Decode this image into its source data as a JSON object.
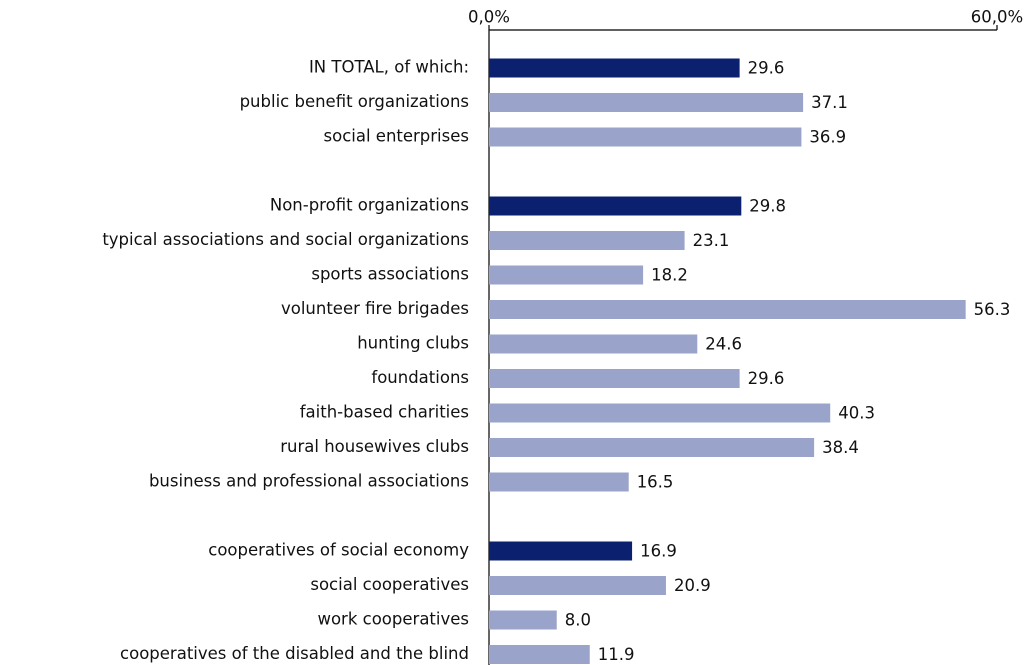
{
  "chart_data": {
    "type": "hbar",
    "categories": [
      "IN TOTAL, of which:",
      "public benefit organizations",
      "social enterprises",
      null,
      "Non-profit organizations",
      "typical associations and social organizations",
      "sports associations",
      "volunteer fire brigades",
      "hunting clubs",
      "foundations",
      "faith-based charities",
      "rural housewives clubs",
      "business and professional associations",
      null,
      "cooperatives of social economy",
      "social cooperatives",
      "work cooperatives",
      "cooperatives of the disabled and the blind"
    ],
    "values": [
      29.6,
      37.1,
      36.9,
      null,
      29.8,
      23.1,
      18.2,
      56.3,
      24.6,
      29.6,
      40.3,
      38.4,
      16.5,
      null,
      16.9,
      20.9,
      8.0,
      11.9
    ],
    "value_labels": [
      "29.6",
      "37.1",
      "36.9",
      null,
      "29.8",
      "23.1",
      "18.2",
      "56.3",
      "24.6",
      "29.6",
      "40.3",
      "38.4",
      "16.5",
      null,
      "16.9",
      "20.9",
      "8.0",
      "11.9"
    ],
    "colors": [
      "#0b2170",
      "#9aa4cb",
      "#9aa4cb",
      null,
      "#0b2170",
      "#9aa4cb",
      "#9aa4cb",
      "#9aa4cb",
      "#9aa4cb",
      "#9aa4cb",
      "#9aa4cb",
      "#9aa4cb",
      "#9aa4cb",
      null,
      "#0b2170",
      "#9aa4cb",
      "#9aa4cb",
      "#9aa4cb"
    ],
    "xlim": [
      0,
      60
    ],
    "xticks": [
      {
        "value": 0,
        "label": "0,0%"
      },
      {
        "value": 60,
        "label": "60,0%"
      }
    ]
  }
}
